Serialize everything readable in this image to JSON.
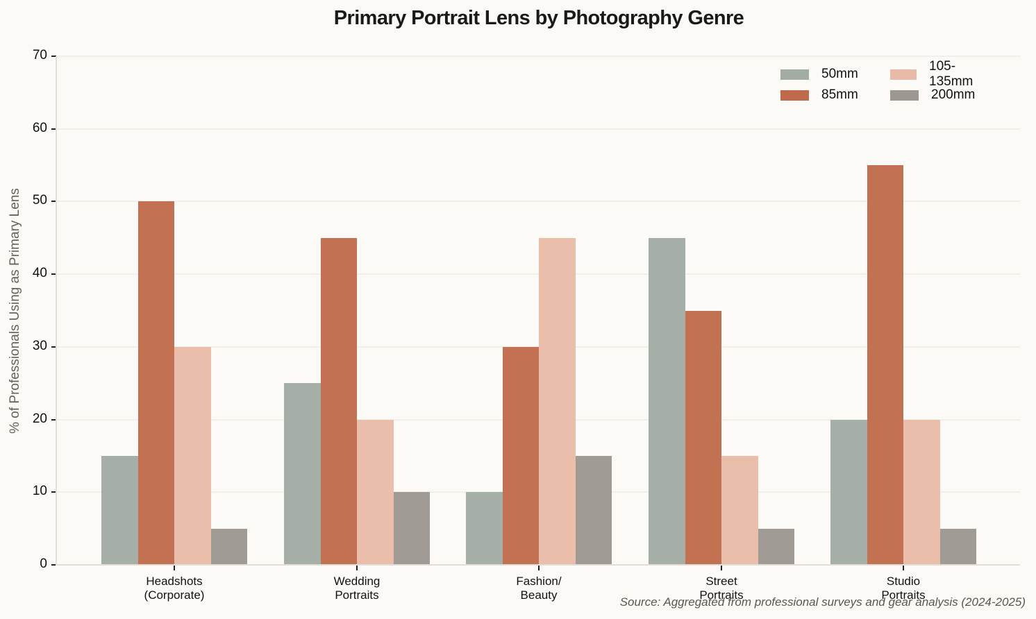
{
  "chart_data": {
    "type": "bar",
    "title": "Primary Portrait Lens by Photography Genre",
    "xlabel": "",
    "ylabel": "% of Professionals Using as Primary Lens",
    "ylim": [
      0,
      70
    ],
    "yticks": [
      0,
      10,
      20,
      30,
      40,
      50,
      60,
      70
    ],
    "grid": true,
    "legend_position": "upper right",
    "categories": [
      "Headshots\n(Corporate)",
      "Wedding\nPortraits",
      "Fashion/\nBeauty",
      "Street\nPortraits",
      "Studio\nPortraits"
    ],
    "series": [
      {
        "name": "50mm",
        "color": "#a2aca3",
        "values": [
          15,
          25,
          10,
          45,
          20
        ]
      },
      {
        "name": "85mm",
        "color": "#bf6b4b",
        "values": [
          50,
          45,
          30,
          35,
          55
        ]
      },
      {
        "name": "105-135mm",
        "color": "#eabaa8",
        "values": [
          30,
          20,
          45,
          15,
          20
        ]
      },
      {
        "name": "200mm",
        "color": "#9c9791",
        "values": [
          5,
          10,
          15,
          5,
          5
        ]
      }
    ],
    "annotations": [
      "Source: Aggregated from professional surveys and gear analysis (2024-2025)"
    ]
  },
  "header": {
    "title": "Primary Portrait Lens by Photography Genre"
  },
  "axes": {
    "y_title": "% of Professionals Using as Primary Lens",
    "y_ticks": [
      "0",
      "10",
      "20",
      "30",
      "40",
      "50",
      "60",
      "70"
    ],
    "x_labels": [
      {
        "line1": "Headshots",
        "line2": "(Corporate)"
      },
      {
        "line1": "Wedding",
        "line2": "Portraits"
      },
      {
        "line1": "Fashion/",
        "line2": "Beauty"
      },
      {
        "line1": "Street",
        "line2": "Portraits"
      },
      {
        "line1": "Studio",
        "line2": "Portraits"
      }
    ]
  },
  "legend": {
    "items": [
      {
        "label": "50mm",
        "color": "#a2aca3"
      },
      {
        "label": "105-135mm",
        "color": "#eabaa8"
      },
      {
        "label": "85mm",
        "color": "#bf6b4b"
      },
      {
        "label": "200mm",
        "color": "#9c9791"
      }
    ]
  },
  "footer": {
    "source": "Source: Aggregated from professional surveys and gear analysis (2024-2025)"
  }
}
